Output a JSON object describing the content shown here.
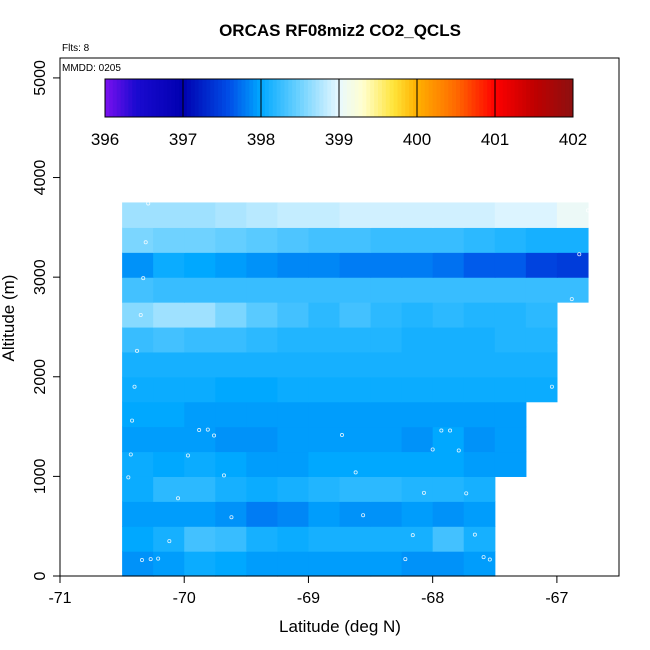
{
  "chart_data": {
    "type": "heatmap",
    "title": "ORCAS RF08miz2 CO2_QCLS",
    "xlabel": "Latitude (deg N)",
    "ylabel": "Altitude (m)",
    "xlim": [
      -71,
      -66.5
    ],
    "ylim": [
      0,
      5200
    ],
    "x_ticks": [
      "-71",
      "-70",
      "-69",
      "-68",
      "-67"
    ],
    "x_tick_values": [
      -71,
      -70,
      -69,
      -68,
      -67
    ],
    "y_ticks": [
      "0",
      "1000",
      "2000",
      "3000",
      "4000",
      "5000"
    ],
    "y_tick_values": [
      0,
      1000,
      2000,
      3000,
      4000,
      5000
    ],
    "notes": {
      "flights": "Flts: 8",
      "date": "MMDD: 0205"
    },
    "colorbar": {
      "min": 396,
      "max": 402,
      "labels": [
        "396",
        "397",
        "398",
        "399",
        "400",
        "401",
        "402"
      ],
      "label_values": [
        396,
        397,
        398,
        399,
        400,
        401,
        402
      ],
      "colormap": [
        [
          396.0,
          "#7b10f0"
        ],
        [
          396.4,
          "#1a0ad0"
        ],
        [
          397.0,
          "#0000b0"
        ],
        [
          397.6,
          "#0050e8"
        ],
        [
          398.0,
          "#00a8ff"
        ],
        [
          398.5,
          "#6fd2ff"
        ],
        [
          399.0,
          "#e8f8ff"
        ],
        [
          399.3,
          "#ffffd0"
        ],
        [
          399.7,
          "#ffe43a"
        ],
        [
          400.0,
          "#ffb000"
        ],
        [
          400.5,
          "#ff6a00"
        ],
        [
          401.0,
          "#ff0000"
        ],
        [
          401.5,
          "#c00000"
        ],
        [
          402.0,
          "#8c1010"
        ]
      ]
    },
    "lat_edges": [
      -70.5,
      -70.25,
      -70.0,
      -69.75,
      -69.5,
      -69.25,
      -69.0,
      -68.75,
      -68.5,
      -68.25,
      -68.0,
      -67.75,
      -67.5,
      -67.25,
      -67.0,
      -66.75
    ],
    "alt_edges": [
      0,
      250,
      500,
      750,
      1000,
      1250,
      1500,
      1750,
      2000,
      2250,
      2500,
      2750,
      3000,
      3250,
      3500,
      3750
    ],
    "cells": [
      [
        397.9,
        397.95,
        398.05,
        398.0,
        397.95,
        397.95,
        397.95,
        397.95,
        397.95,
        397.9,
        397.9,
        397.95,
        null,
        null,
        null
      ],
      [
        398.0,
        398.1,
        398.3,
        398.25,
        398.1,
        398.05,
        398.1,
        398.1,
        398.1,
        398.1,
        398.3,
        398.1,
        null,
        null,
        null
      ],
      [
        397.95,
        397.95,
        397.95,
        397.9,
        397.8,
        397.85,
        397.95,
        397.9,
        397.9,
        397.95,
        397.9,
        397.95,
        null,
        null,
        null
      ],
      [
        398.05,
        398.2,
        398.2,
        398.1,
        398.05,
        398.1,
        398.15,
        398.2,
        398.2,
        398.15,
        398.15,
        398.1,
        null,
        null,
        null
      ],
      [
        398.05,
        398.0,
        398.05,
        398.0,
        397.95,
        397.95,
        398.0,
        398.0,
        398.0,
        398.0,
        398.0,
        397.95,
        397.95,
        null,
        null
      ],
      [
        397.95,
        397.95,
        397.95,
        397.9,
        397.9,
        397.95,
        397.95,
        397.95,
        397.95,
        397.9,
        398.0,
        397.9,
        397.95,
        null,
        null
      ],
      [
        398.0,
        398.0,
        397.95,
        397.95,
        397.95,
        397.95,
        397.95,
        397.95,
        397.95,
        397.95,
        397.95,
        397.95,
        397.95,
        null,
        null
      ],
      [
        398.05,
        398.05,
        398.05,
        398.0,
        398.0,
        398.05,
        398.05,
        398.05,
        398.05,
        398.05,
        398.05,
        398.05,
        398.05,
        398.05,
        null
      ],
      [
        398.1,
        398.1,
        398.1,
        398.1,
        398.1,
        398.1,
        398.1,
        398.1,
        398.1,
        398.1,
        398.1,
        398.1,
        398.1,
        398.1,
        null
      ],
      [
        398.25,
        398.3,
        398.25,
        398.25,
        398.2,
        398.15,
        398.15,
        398.15,
        398.15,
        398.1,
        398.1,
        398.1,
        398.15,
        398.15,
        null
      ],
      [
        398.6,
        398.7,
        398.7,
        398.55,
        398.4,
        398.3,
        398.2,
        398.3,
        398.2,
        398.15,
        398.2,
        398.15,
        398.15,
        398.2,
        null
      ],
      [
        398.3,
        398.25,
        398.25,
        398.25,
        398.25,
        398.25,
        398.25,
        398.25,
        398.25,
        398.25,
        398.25,
        398.25,
        398.25,
        398.25,
        398.25
      ],
      [
        397.9,
        398.05,
        398.0,
        397.95,
        397.9,
        397.85,
        397.85,
        397.8,
        397.8,
        397.8,
        397.75,
        397.65,
        397.65,
        397.5,
        397.45
      ],
      [
        398.55,
        398.5,
        398.5,
        398.45,
        398.4,
        398.35,
        398.3,
        398.3,
        398.25,
        398.25,
        398.25,
        398.2,
        398.15,
        398.1,
        398.1
      ],
      [
        398.7,
        398.7,
        398.7,
        398.75,
        398.8,
        398.85,
        398.85,
        398.9,
        398.9,
        398.9,
        398.9,
        398.9,
        398.95,
        398.95,
        399.05
      ]
    ],
    "samples": [
      {
        "lat": -70.34,
        "alt": 160
      },
      {
        "lat": -70.27,
        "alt": 170
      },
      {
        "lat": -70.21,
        "alt": 175
      },
      {
        "lat": -70.12,
        "alt": 350
      },
      {
        "lat": -70.05,
        "alt": 780
      },
      {
        "lat": -69.97,
        "alt": 1210
      },
      {
        "lat": -69.88,
        "alt": 1465
      },
      {
        "lat": -69.81,
        "alt": 1470
      },
      {
        "lat": -69.76,
        "alt": 1410
      },
      {
        "lat": -69.68,
        "alt": 1010
      },
      {
        "lat": -69.62,
        "alt": 590
      },
      {
        "lat": -68.73,
        "alt": 1415
      },
      {
        "lat": -68.62,
        "alt": 1040
      },
      {
        "lat": -68.56,
        "alt": 610
      },
      {
        "lat": -68.22,
        "alt": 170
      },
      {
        "lat": -68.16,
        "alt": 410
      },
      {
        "lat": -68.07,
        "alt": 835
      },
      {
        "lat": -68.0,
        "alt": 1270
      },
      {
        "lat": -67.93,
        "alt": 1460
      },
      {
        "lat": -67.86,
        "alt": 1460
      },
      {
        "lat": -67.79,
        "alt": 1260
      },
      {
        "lat": -67.73,
        "alt": 830
      },
      {
        "lat": -67.66,
        "alt": 415
      },
      {
        "lat": -67.59,
        "alt": 190
      },
      {
        "lat": -67.54,
        "alt": 165
      },
      {
        "lat": -67.04,
        "alt": 1900
      },
      {
        "lat": -66.98,
        "alt": 2340
      },
      {
        "lat": -66.88,
        "alt": 2780
      },
      {
        "lat": -66.82,
        "alt": 3230
      },
      {
        "lat": -66.75,
        "alt": 3670
      },
      {
        "lat": -70.45,
        "alt": 990
      },
      {
        "lat": -70.43,
        "alt": 1220
      },
      {
        "lat": -70.42,
        "alt": 1560
      },
      {
        "lat": -70.4,
        "alt": 1900
      },
      {
        "lat": -70.38,
        "alt": 2260
      },
      {
        "lat": -70.35,
        "alt": 2620
      },
      {
        "lat": -70.33,
        "alt": 2990
      },
      {
        "lat": -70.31,
        "alt": 3350
      },
      {
        "lat": -70.29,
        "alt": 3740
      }
    ]
  }
}
